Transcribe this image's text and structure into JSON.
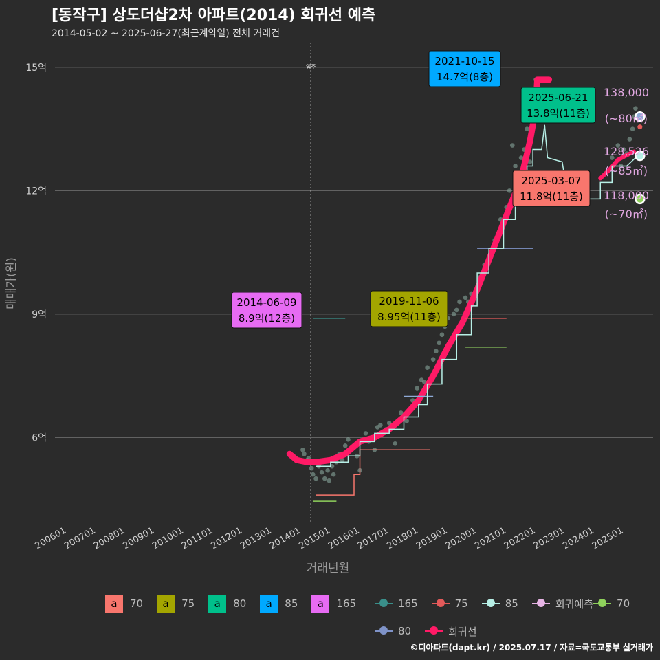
{
  "title": "[동작구] 상도더샵2차 아파트(2014) 회귀선 예측",
  "subtitle": "2014-05-02 ~ 2025-06-27(최근계약일) 전체 거래건",
  "credit": "©디아파트(dapt.kr) / 2025.07.17 / 자료=국토교통부 실거래가",
  "chart_data": {
    "type": "scatter",
    "xlabel": "거래년월",
    "ylabel": "매매가(원)",
    "x_ticks": [
      "200601",
      "200701",
      "200801",
      "200901",
      "201001",
      "201101",
      "201201",
      "201301",
      "201401",
      "201501",
      "201601",
      "201701",
      "201801",
      "201901",
      "202001",
      "202101",
      "202201",
      "202301",
      "202401",
      "202501"
    ],
    "xlim": [
      2005.6,
      2026.0
    ],
    "y_ticks": [
      {
        "value": 6,
        "label": "6억"
      },
      {
        "value": 9,
        "label": "9억"
      },
      {
        "value": 12,
        "label": "12억"
      },
      {
        "value": 15,
        "label": "15억"
      }
    ],
    "ylim": [
      3.9,
      15.6
    ],
    "move_in": {
      "x": 2014.33,
      "label": "입주"
    },
    "regression_line": {
      "name": "회귀선",
      "color": "#ff1a66",
      "points": [
        [
          2013.6,
          5.6
        ],
        [
          2013.85,
          5.45
        ],
        [
          2014.2,
          5.4
        ],
        [
          2014.5,
          5.4
        ],
        [
          2015.0,
          5.45
        ],
        [
          2015.5,
          5.6
        ],
        [
          2016.0,
          5.9
        ],
        [
          2016.5,
          6.0
        ],
        [
          2017.0,
          6.2
        ],
        [
          2017.5,
          6.5
        ],
        [
          2018.0,
          6.9
        ],
        [
          2018.5,
          7.5
        ],
        [
          2019.0,
          8.2
        ],
        [
          2019.5,
          8.8
        ],
        [
          2020.0,
          9.6
        ],
        [
          2020.5,
          10.5
        ],
        [
          2021.0,
          11.4
        ],
        [
          2021.5,
          12.3
        ],
        [
          2021.8,
          13.2
        ],
        [
          2022.0,
          14.0
        ],
        [
          2022.05,
          14.7
        ],
        [
          2022.45,
          14.7
        ]
      ]
    },
    "regression_line_2": {
      "points": [
        [
          2024.2,
          12.3
        ],
        [
          2024.5,
          12.5
        ],
        [
          2024.8,
          12.75
        ],
        [
          2025.2,
          12.9
        ],
        [
          2025.35,
          12.95
        ]
      ]
    },
    "series": [
      {
        "name": "70",
        "color": "#f8766d",
        "steps": [
          [
            2014.5,
            4.6
          ],
          [
            2015.8,
            4.6
          ],
          [
            2015.8,
            5.1
          ],
          [
            2016.0,
            5.1
          ],
          [
            2016.0,
            5.7
          ],
          [
            2018.4,
            5.7
          ]
        ]
      },
      {
        "name": "75",
        "color": "#e45a5a",
        "steps": [
          [
            2019.6,
            8.9
          ],
          [
            2021.0,
            8.9
          ]
        ]
      },
      {
        "name": "70",
        "color": "#8fd15c",
        "steps": [
          [
            2014.4,
            4.45
          ],
          [
            2015.2,
            4.45
          ]
        ]
      },
      {
        "name": "70b",
        "color": "#9be064",
        "steps": [
          [
            2019.6,
            8.2
          ],
          [
            2021.0,
            8.2
          ]
        ]
      },
      {
        "name": "165",
        "color": "#3a8f8a",
        "steps": [
          [
            2014.4,
            8.9
          ],
          [
            2015.5,
            8.9
          ]
        ]
      },
      {
        "name": "80",
        "color": "#8faad6",
        "steps": [
          [
            2017.5,
            7.0
          ],
          [
            2018.5,
            7.0
          ]
        ]
      },
      {
        "name": "80b",
        "color": "#7f93c8",
        "steps": [
          [
            2020.0,
            10.6
          ],
          [
            2021.9,
            10.6
          ]
        ]
      },
      {
        "name": "85",
        "color": "#b7efe6",
        "steps": [
          [
            2014.5,
            5.3
          ],
          [
            2015.0,
            5.3
          ],
          [
            2015.0,
            5.4
          ],
          [
            2015.6,
            5.4
          ],
          [
            2015.6,
            5.55
          ],
          [
            2016.0,
            5.55
          ],
          [
            2016.0,
            5.9
          ],
          [
            2016.5,
            5.9
          ],
          [
            2016.5,
            6.1
          ],
          [
            2017.0,
            6.1
          ],
          [
            2017.0,
            6.2
          ],
          [
            2017.5,
            6.2
          ],
          [
            2017.5,
            6.5
          ],
          [
            2018.0,
            6.5
          ],
          [
            2018.0,
            6.8
          ],
          [
            2018.3,
            6.8
          ],
          [
            2018.3,
            7.3
          ],
          [
            2018.8,
            7.3
          ],
          [
            2018.8,
            7.9
          ],
          [
            2019.3,
            7.9
          ],
          [
            2019.3,
            8.5
          ],
          [
            2019.8,
            8.5
          ],
          [
            2019.8,
            9.2
          ],
          [
            2020.0,
            9.2
          ],
          [
            2020.0,
            10.0
          ],
          [
            2020.4,
            10.0
          ],
          [
            2020.4,
            10.6
          ],
          [
            2020.9,
            10.6
          ],
          [
            2020.9,
            11.3
          ],
          [
            2021.3,
            11.3
          ],
          [
            2021.3,
            12.1
          ],
          [
            2021.7,
            12.1
          ],
          [
            2021.7,
            12.6
          ],
          [
            2021.9,
            12.6
          ],
          [
            2021.9,
            13.0
          ],
          [
            2022.2,
            13.0
          ],
          [
            2022.3,
            13.6
          ],
          [
            2022.4,
            12.8
          ],
          [
            2022.9,
            12.7
          ],
          [
            2023.1,
            11.8
          ],
          [
            2024.2,
            11.8
          ],
          [
            2024.2,
            12.2
          ],
          [
            2024.6,
            12.2
          ],
          [
            2024.6,
            12.6
          ],
          [
            2025.1,
            12.6
          ],
          [
            2025.4,
            12.8
          ]
        ]
      }
    ],
    "points": [
      [
        2014.05,
        5.7
      ],
      [
        2014.1,
        5.6
      ],
      [
        2014.2,
        5.45
      ],
      [
        2014.25,
        5.5
      ],
      [
        2014.35,
        5.25
      ],
      [
        2014.4,
        5.1
      ],
      [
        2014.5,
        5.0
      ],
      [
        2014.6,
        5.3
      ],
      [
        2014.7,
        5.15
      ],
      [
        2014.8,
        5.0
      ],
      [
        2014.9,
        5.2
      ],
      [
        2014.95,
        4.95
      ],
      [
        2015.05,
        5.3
      ],
      [
        2015.1,
        5.1
      ],
      [
        2015.2,
        5.4
      ],
      [
        2015.3,
        5.6
      ],
      [
        2015.4,
        5.45
      ],
      [
        2015.5,
        5.8
      ],
      [
        2015.6,
        5.95
      ],
      [
        2015.8,
        5.8
      ],
      [
        2015.9,
        5.55
      ],
      [
        2016.0,
        5.2
      ],
      [
        2016.1,
        5.9
      ],
      [
        2016.2,
        6.1
      ],
      [
        2016.3,
        5.9
      ],
      [
        2016.5,
        5.7
      ],
      [
        2016.6,
        6.25
      ],
      [
        2016.7,
        6.3
      ],
      [
        2016.9,
        6.2
      ],
      [
        2017.0,
        6.35
      ],
      [
        2017.1,
        6.3
      ],
      [
        2017.2,
        5.85
      ],
      [
        2017.4,
        6.6
      ],
      [
        2017.6,
        6.4
      ],
      [
        2017.8,
        6.9
      ],
      [
        2017.95,
        7.2
      ],
      [
        2018.1,
        7.4
      ],
      [
        2018.2,
        7.35
      ],
      [
        2018.3,
        7.7
      ],
      [
        2018.5,
        7.9
      ],
      [
        2018.6,
        8.1
      ],
      [
        2018.7,
        8.3
      ],
      [
        2018.8,
        8.5
      ],
      [
        2018.9,
        8.7
      ],
      [
        2019.0,
        8.9
      ],
      [
        2019.2,
        9.0
      ],
      [
        2019.3,
        9.1
      ],
      [
        2019.4,
        9.3
      ],
      [
        2019.6,
        9.4
      ],
      [
        2019.7,
        9.3
      ],
      [
        2019.8,
        9.5
      ],
      [
        2020.0,
        9.6
      ],
      [
        2020.1,
        9.9
      ],
      [
        2020.25,
        10.2
      ],
      [
        2020.4,
        10.4
      ],
      [
        2020.6,
        10.8
      ],
      [
        2020.8,
        11.3
      ],
      [
        2021.0,
        11.6
      ],
      [
        2021.1,
        12.0
      ],
      [
        2021.2,
        13.1
      ],
      [
        2021.3,
        12.6
      ],
      [
        2021.5,
        12.8
      ],
      [
        2021.6,
        13.0
      ],
      [
        2021.7,
        13.5
      ],
      [
        2021.8,
        12.7
      ],
      [
        2021.9,
        13.7
      ],
      [
        2022.0,
        14.7
      ],
      [
        2024.6,
        12.8
      ],
      [
        2024.8,
        13.1
      ],
      [
        2024.9,
        12.6
      ],
      [
        2025.0,
        13.0
      ],
      [
        2025.1,
        12.9
      ],
      [
        2025.2,
        13.25
      ],
      [
        2025.3,
        13.5
      ],
      [
        2025.35,
        13.8
      ],
      [
        2025.4,
        14.0
      ]
    ],
    "annotations": [
      {
        "date": "2021-10-15",
        "text": "14.7억(8층)",
        "area": "85",
        "color": "#00a9ff",
        "x": 2021.8,
        "y": 14.5
      },
      {
        "date": "2025-06-21",
        "text": "13.8억(11층)",
        "area": "80",
        "color": "#00c08b",
        "x": 2025.3,
        "y": 13.7
      },
      {
        "date": "2025-03-07",
        "text": "11.8억(11층)",
        "area": "70",
        "color": "#f8766d",
        "x": 2025.18,
        "y": 11.8
      },
      {
        "date": "2019-11-06",
        "text": "8.95억(11층)",
        "area": "75",
        "color": "#a3a500",
        "x": 2019.85,
        "y": 8.95
      },
      {
        "date": "2014-06-09",
        "text": "8.9억(12층)",
        "area": "165",
        "color": "#e76bf3",
        "x": 2014.44,
        "y": 8.9
      }
    ],
    "forecast": [
      {
        "value": "138,000",
        "area": "(~80㎡)",
        "y": 13.8,
        "color": "#8faad6"
      },
      {
        "value": "128,526",
        "area": "(~85㎡)",
        "y": 12.85,
        "color": "#b7efe6"
      },
      {
        "value": "118,000",
        "area": "(~70㎡)",
        "y": 11.8,
        "color": "#8fd15c"
      }
    ],
    "legend_area": [
      {
        "label": "70",
        "color": "#f8766d"
      },
      {
        "label": "75",
        "color": "#a3a500"
      },
      {
        "label": "80",
        "color": "#00c08b"
      },
      {
        "label": "85",
        "color": "#00a9ff"
      },
      {
        "label": "165",
        "color": "#e76bf3"
      }
    ],
    "legend_area_glyph": "a",
    "legend_lines": [
      {
        "label": "165",
        "color": "#3a8f8a"
      },
      {
        "label": "75",
        "color": "#e45a5a"
      },
      {
        "label": "85",
        "color": "#b7efe6"
      },
      {
        "label": "회귀예측",
        "color": "#e8b5e6"
      },
      {
        "label": "70",
        "color": "#8fd15c"
      },
      {
        "label": "80",
        "color": "#7f93c8"
      },
      {
        "label": "회귀선",
        "color": "#ff1a66"
      }
    ]
  }
}
